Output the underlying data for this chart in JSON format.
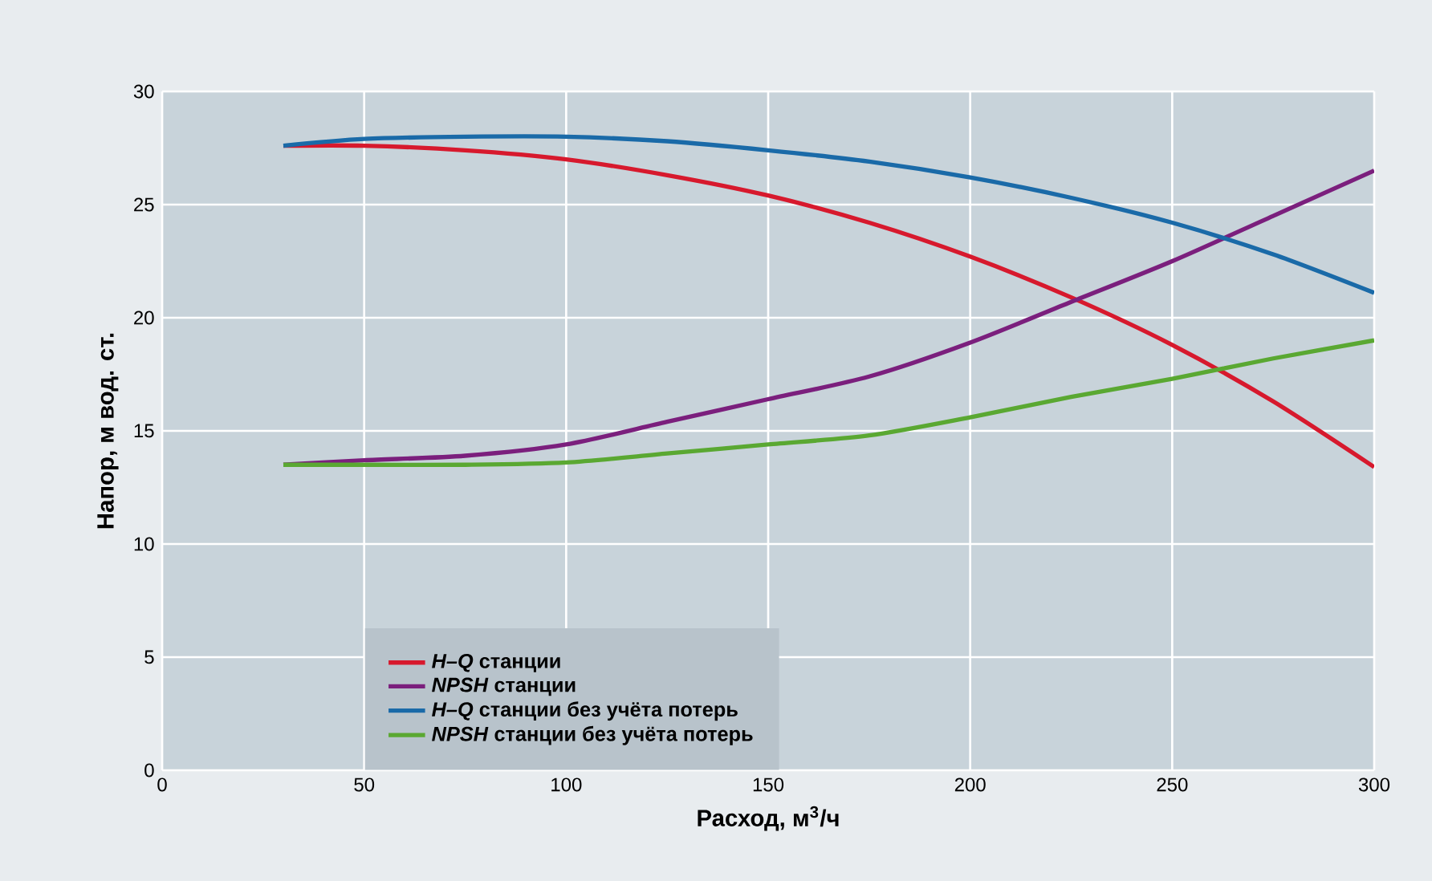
{
  "chart_data": {
    "type": "line",
    "xlabel": "Расход, м$^{3}$/ч",
    "ylabel": "Напор, м вод. ст.",
    "xlim": [
      0,
      300
    ],
    "ylim": [
      0,
      30
    ],
    "xticks": [
      0,
      50,
      100,
      150,
      200,
      250,
      300
    ],
    "yticks": [
      0,
      5,
      10,
      15,
      20,
      25,
      30
    ],
    "grid": true,
    "legend": "bottom left",
    "marker": "none",
    "line_style": "solid",
    "x": [
      30,
      50,
      75,
      100,
      125,
      150,
      175,
      200,
      225,
      250,
      275,
      300
    ],
    "series": [
      {
        "name": "*H–Q* станции",
        "color": "#d7192d",
        "values": [
          27.6,
          27.6,
          27.4,
          27.0,
          26.3,
          25.4,
          24.2,
          22.7,
          20.9,
          18.8,
          16.3,
          13.4
        ]
      },
      {
        "name": "*NPSH* станции",
        "color": "#7b1f7d",
        "values": [
          13.5,
          13.7,
          13.9,
          14.4,
          15.4,
          16.4,
          17.4,
          18.9,
          20.7,
          22.5,
          24.5,
          26.5
        ]
      },
      {
        "name": "*H–Q* станции без учёта потерь",
        "color": "#1a6aa8",
        "values": [
          27.6,
          27.9,
          28.0,
          28.0,
          27.8,
          27.4,
          26.9,
          26.2,
          25.3,
          24.2,
          22.8,
          21.1
        ]
      },
      {
        "name": "*NPSH* станции без учёта потерь",
        "color": "#5aa832",
        "values": [
          13.5,
          13.5,
          13.5,
          13.6,
          14.0,
          14.4,
          14.8,
          15.6,
          16.5,
          17.3,
          18.2,
          19.0
        ]
      }
    ]
  }
}
